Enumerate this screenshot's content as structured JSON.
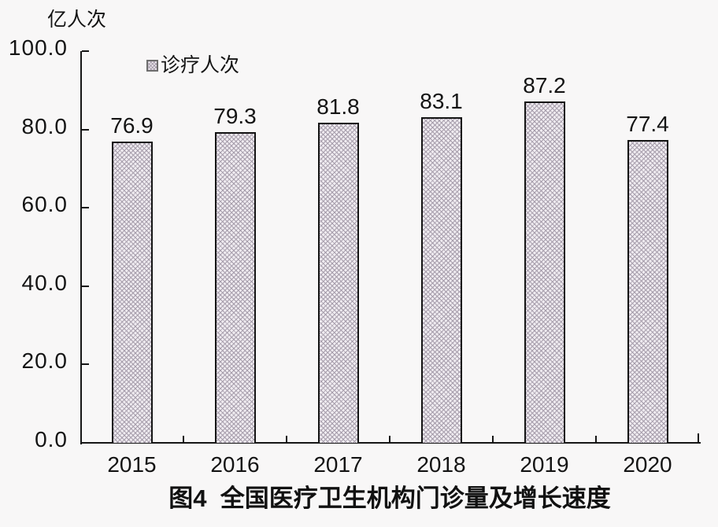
{
  "chart_data": {
    "type": "bar",
    "title": "图4  全国医疗卫生机构门诊量及增长速度",
    "unit_label": "亿人次",
    "legend": "诊疗人次",
    "categories": [
      "2015",
      "2016",
      "2017",
      "2018",
      "2019",
      "2020"
    ],
    "values": [
      76.9,
      79.3,
      81.8,
      83.1,
      87.2,
      77.4
    ],
    "value_labels": [
      "76.9",
      "79.3",
      "81.8",
      "83.1",
      "87.2",
      "77.4"
    ],
    "ylim": [
      0,
      100
    ],
    "yticks": [
      "100.0",
      "80.0",
      "60.0",
      "40.0",
      "20.0",
      "0.0"
    ],
    "ytick_values": [
      100,
      80,
      60,
      40,
      20,
      0
    ],
    "legend_position": "top-left-inside",
    "grid": false,
    "bar_pattern": "diamond-crosshatch",
    "colors": {
      "background": "#f8f7f7",
      "bar_fill": "#efebf0",
      "bar_hatch": "#a79eac",
      "bar_border": "#141414",
      "axis": "#161616",
      "text": "#141414"
    }
  }
}
